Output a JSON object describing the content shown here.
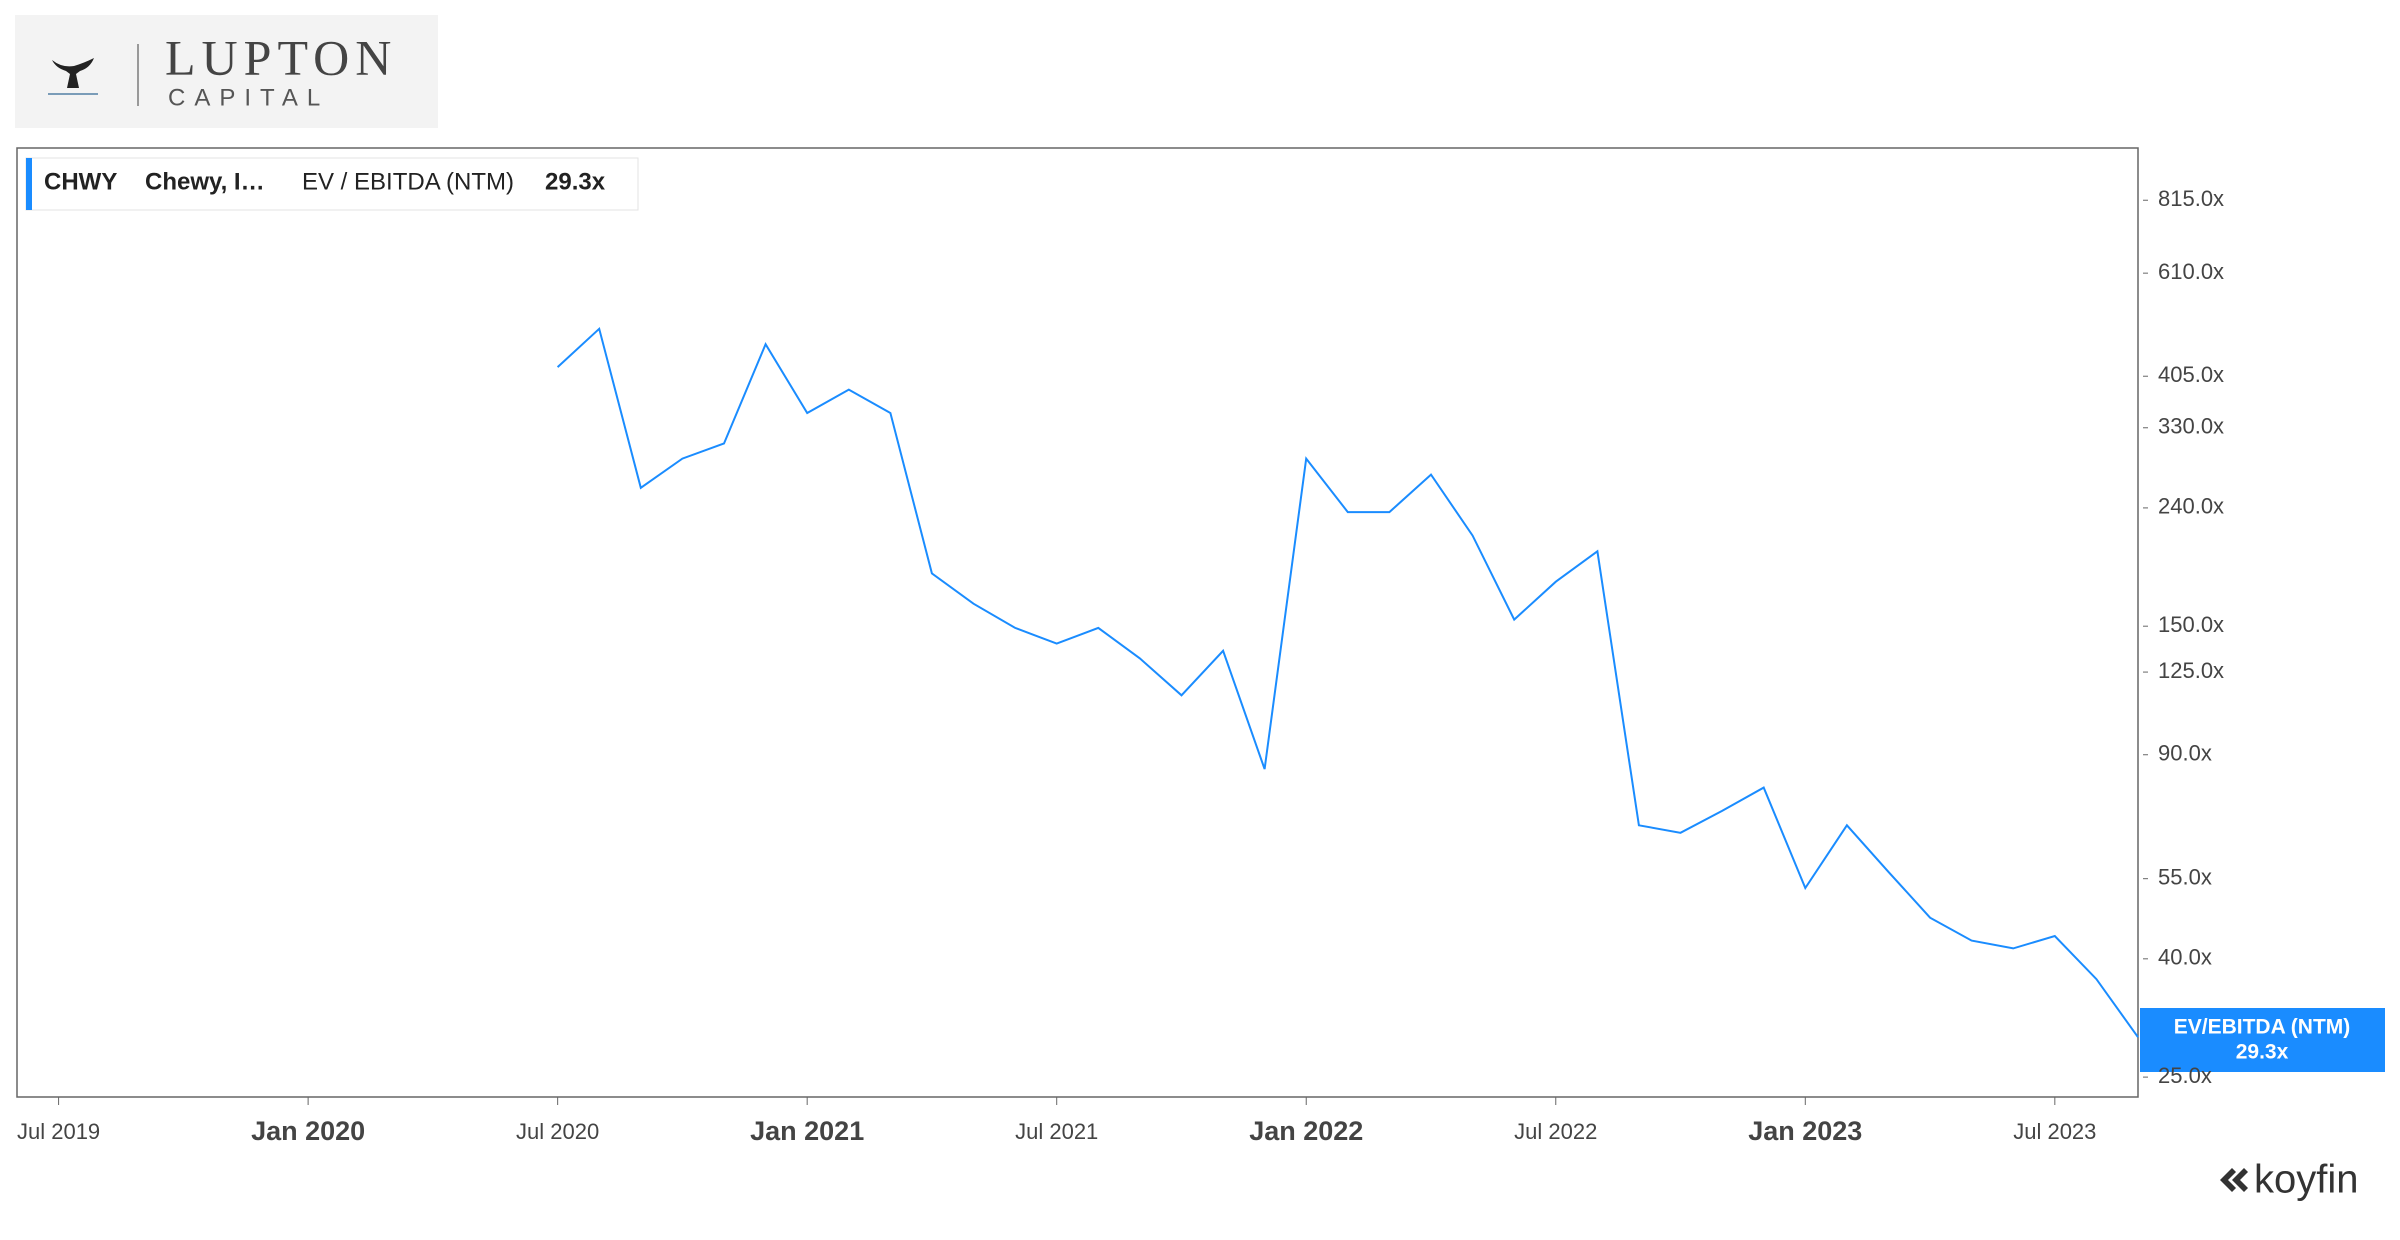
{
  "logo": {
    "name": "LUPTON",
    "sub": "CAPITAL"
  },
  "brand": "koyfin",
  "chart_data": {
    "type": "line",
    "ticker": "CHWY",
    "company": "Chewy, I…",
    "badge_label": "EV/EBITDA (NTM)",
    "x": [
      "2020-07",
      "2020-08",
      "2020-09",
      "2020-10",
      "2020-11",
      "2020-12",
      "2021-01",
      "2021-02",
      "2021-03",
      "2021-04",
      "2021-05",
      "2021-06",
      "2021-07",
      "2021-08",
      "2021-09",
      "2021-10",
      "2021-11",
      "2021-12",
      "2022-01",
      "2022-02",
      "2022-03",
      "2022-04",
      "2022-05",
      "2022-06",
      "2022-07",
      "2022-08",
      "2022-09",
      "2022-10",
      "2022-11",
      "2022-12",
      "2023-01",
      "2023-02",
      "2023-03",
      "2023-04",
      "2023-05",
      "2023-06",
      "2023-07",
      "2023-08",
      "2023-09"
    ],
    "series": [
      {
        "name": "EV / EBITDA (NTM)",
        "color": "#1a8cff",
        "values": [
          420,
          489,
          260,
          292,
          310,
          460,
          350,
          384,
          350,
          185,
          164,
          149,
          140,
          149,
          132,
          114,
          136,
          85,
          292,
          236,
          236,
          274,
          215,
          154,
          179,
          202,
          68,
          66,
          72,
          79,
          53,
          68,
          56.5,
          47.1,
          43.0,
          41.7,
          43.8,
          36.9,
          29.3
        ],
        "value_labels": [
          null,
          null,
          null,
          null,
          null,
          null,
          null,
          null,
          null,
          null,
          null,
          null,
          null,
          null,
          null,
          null,
          null,
          null,
          null,
          null,
          null,
          null,
          null,
          null,
          null,
          null,
          null,
          null,
          null,
          null,
          null,
          null,
          null,
          null,
          null,
          null,
          null,
          null,
          "29.3x"
        ]
      }
    ],
    "log_scale": true,
    "xlim": [
      "2019-06",
      "2023-09"
    ],
    "ylim": [
      23.1,
      1003
    ],
    "xticks": [
      {
        "value": "2019-07",
        "label": "Jul 2019"
      },
      {
        "value": "2020-01",
        "label": "Jan 2020"
      },
      {
        "value": "2020-07",
        "label": "Jul 2020"
      },
      {
        "value": "2021-01",
        "label": "Jan 2021"
      },
      {
        "value": "2021-07",
        "label": "Jul 2021"
      },
      {
        "value": "2022-01",
        "label": "Jan 2022"
      },
      {
        "value": "2022-07",
        "label": "Jul 2022"
      },
      {
        "value": "2023-01",
        "label": "Jan 2023"
      },
      {
        "value": "2023-07",
        "label": "Jul 2023"
      }
    ],
    "yticks": [
      {
        "value": 25,
        "label": "25.0x"
      },
      {
        "value": 40,
        "label": "40.0x"
      },
      {
        "value": 55,
        "label": "55.0x"
      },
      {
        "value": 90,
        "label": "90.0x"
      },
      {
        "value": 125,
        "label": "125.0x"
      },
      {
        "value": 150,
        "label": "150.0x"
      },
      {
        "value": 240,
        "label": "240.0x"
      },
      {
        "value": 330,
        "label": "330.0x"
      },
      {
        "value": 405,
        "label": "405.0x"
      },
      {
        "value": 610,
        "label": "610.0x"
      },
      {
        "value": 815,
        "label": "815.0x"
      }
    ],
    "grid": false
  }
}
